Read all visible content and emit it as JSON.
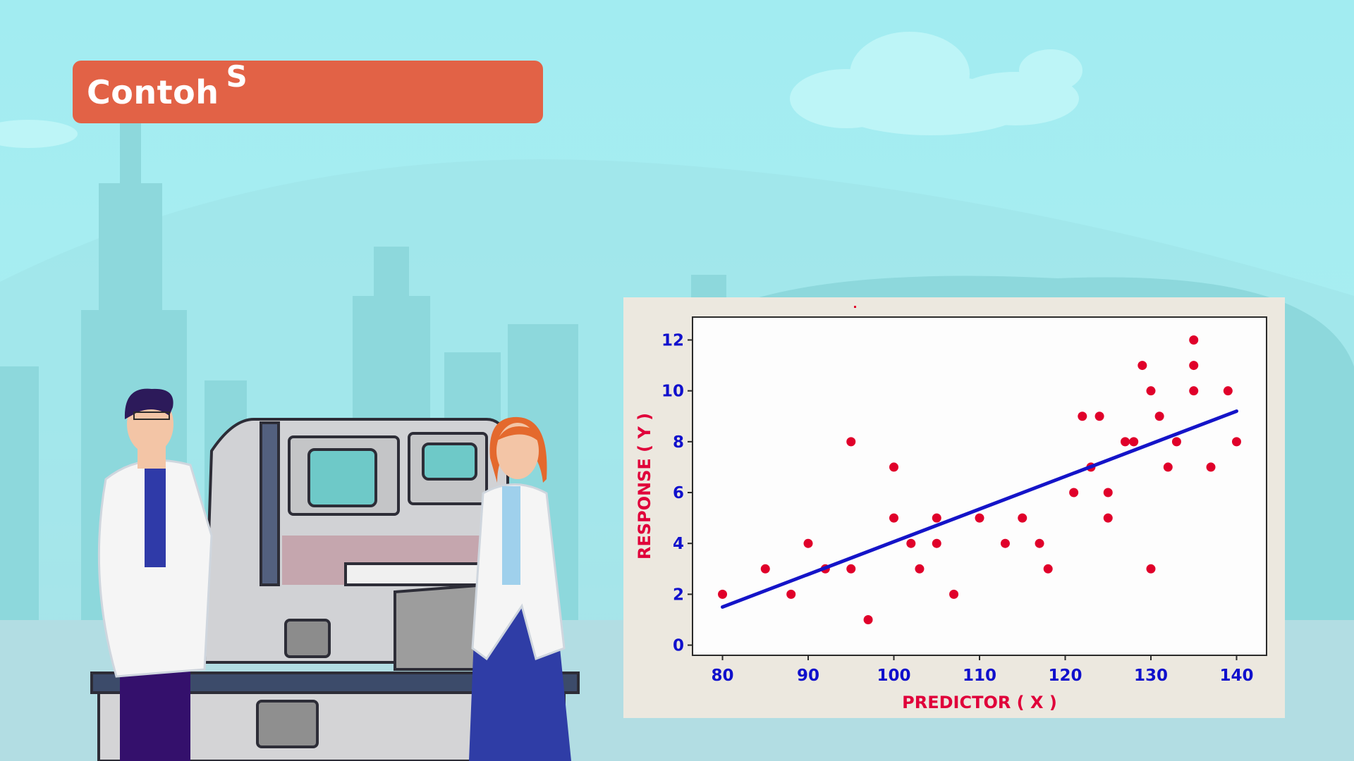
{
  "title_banner": {
    "text": "Contoh",
    "superscript": "S"
  },
  "colors": {
    "background": "#a6eef2",
    "banner": "#e26246",
    "point": "#e0002a",
    "line": "#1414c8",
    "tick": "#1010cc",
    "axis_title": "#e0003a"
  },
  "chart_data": {
    "type": "scatter",
    "title": "",
    "xlabel": "PREDICTOR ( X )",
    "ylabel": "RESPONSE ( Y )",
    "xlim": [
      76.5,
      143.5
    ],
    "ylim": [
      -0.4,
      12.9
    ],
    "xticks": [
      80,
      90,
      100,
      110,
      120,
      130,
      140
    ],
    "yticks": [
      0,
      2,
      4,
      6,
      8,
      10,
      12
    ],
    "grid": false,
    "points": [
      {
        "x": 80,
        "y": 2
      },
      {
        "x": 85,
        "y": 3
      },
      {
        "x": 88,
        "y": 2
      },
      {
        "x": 90,
        "y": 4
      },
      {
        "x": 92,
        "y": 3
      },
      {
        "x": 95,
        "y": 8
      },
      {
        "x": 95,
        "y": 3
      },
      {
        "x": 97,
        "y": 1
      },
      {
        "x": 100,
        "y": 7
      },
      {
        "x": 100,
        "y": 5
      },
      {
        "x": 102,
        "y": 4
      },
      {
        "x": 103,
        "y": 3
      },
      {
        "x": 105,
        "y": 5
      },
      {
        "x": 105,
        "y": 4
      },
      {
        "x": 107,
        "y": 2
      },
      {
        "x": 110,
        "y": 5
      },
      {
        "x": 113,
        "y": 4
      },
      {
        "x": 115,
        "y": 5
      },
      {
        "x": 117,
        "y": 4
      },
      {
        "x": 118,
        "y": 3
      },
      {
        "x": 121,
        "y": 6
      },
      {
        "x": 122,
        "y": 9
      },
      {
        "x": 123,
        "y": 7
      },
      {
        "x": 124,
        "y": 9
      },
      {
        "x": 125,
        "y": 6
      },
      {
        "x": 125,
        "y": 5
      },
      {
        "x": 127,
        "y": 8
      },
      {
        "x": 128,
        "y": 8
      },
      {
        "x": 129,
        "y": 11
      },
      {
        "x": 130,
        "y": 10
      },
      {
        "x": 130,
        "y": 3
      },
      {
        "x": 131,
        "y": 9
      },
      {
        "x": 132,
        "y": 7
      },
      {
        "x": 133,
        "y": 8
      },
      {
        "x": 135,
        "y": 12
      },
      {
        "x": 135,
        "y": 11
      },
      {
        "x": 135,
        "y": 10
      },
      {
        "x": 137,
        "y": 7
      },
      {
        "x": 139,
        "y": 10
      },
      {
        "x": 140,
        "y": 8
      }
    ],
    "regression_line": {
      "x": [
        80,
        140
      ],
      "y": [
        1.5,
        9.2
      ]
    }
  }
}
